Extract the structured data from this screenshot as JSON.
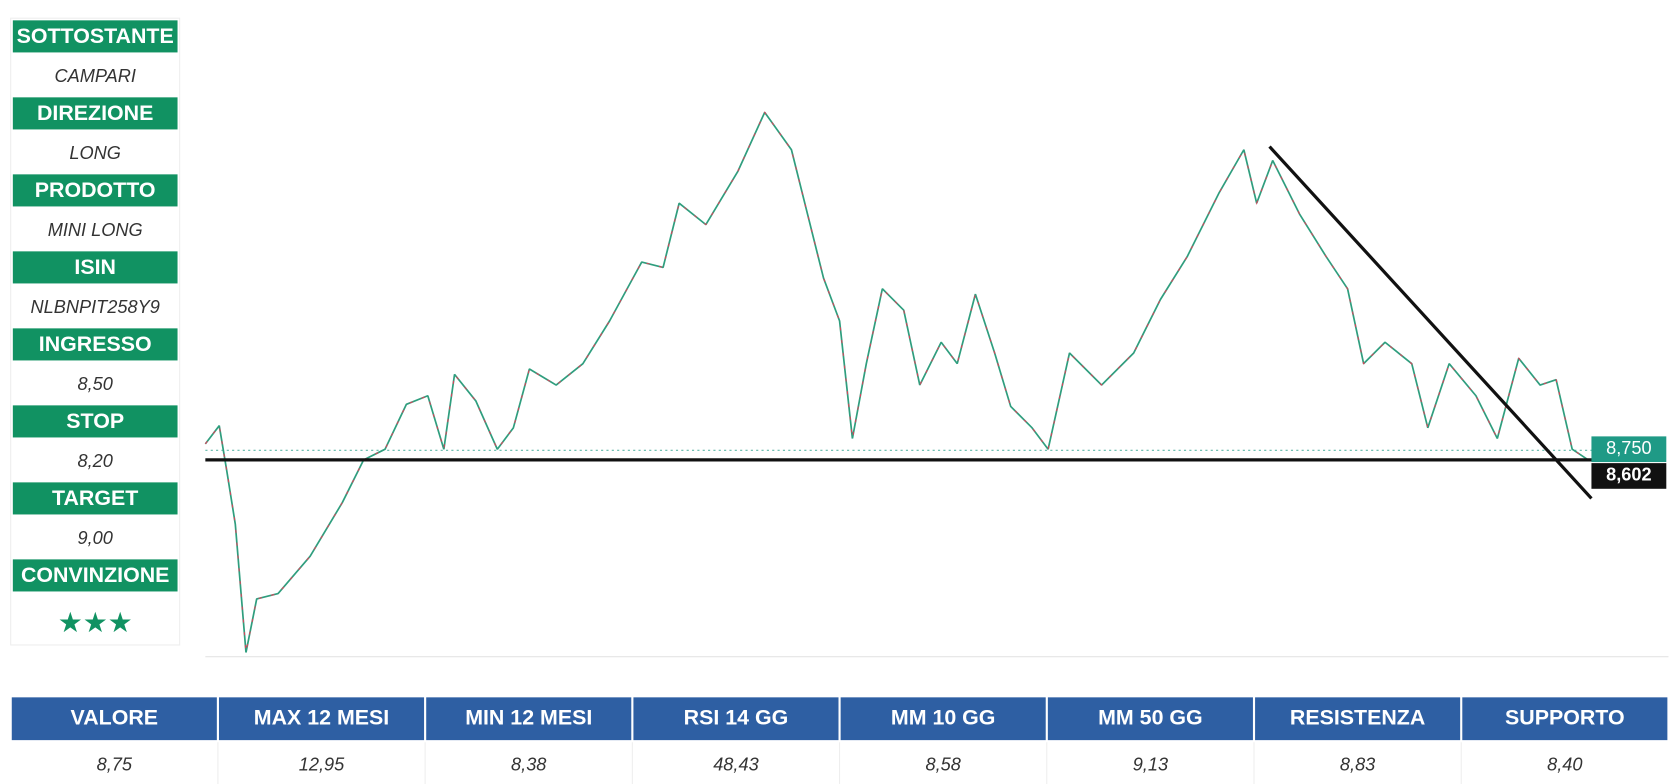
{
  "panel": [
    {
      "label": "SOTTOSTANTE",
      "value": "CAMPARI"
    },
    {
      "label": "DIREZIONE",
      "value": "LONG"
    },
    {
      "label": "PRODOTTO",
      "value": "MINI LONG"
    },
    {
      "label": "ISIN",
      "value": "NLBNPIT258Y9"
    },
    {
      "label": "INGRESSO",
      "value": "8,50"
    },
    {
      "label": "STOP",
      "value": "8,20"
    },
    {
      "label": "TARGET",
      "value": "9,00"
    },
    {
      "label": "CONVINZIONE",
      "value": "★★★"
    }
  ],
  "price_tags": {
    "last": "8,750",
    "level": "8,602"
  },
  "table": {
    "headers": [
      "VALORE",
      "MAX 12 MESI",
      "MIN 12 MESI",
      "RSI 14 GG",
      "MM 10 GG",
      "MM 50 GG",
      "RESISTENZA",
      "SUPPORTO"
    ],
    "values": [
      "8,75",
      "12,95",
      "8,38",
      "48,43",
      "8,58",
      "9,13",
      "8,83",
      "8,40"
    ]
  }
}
